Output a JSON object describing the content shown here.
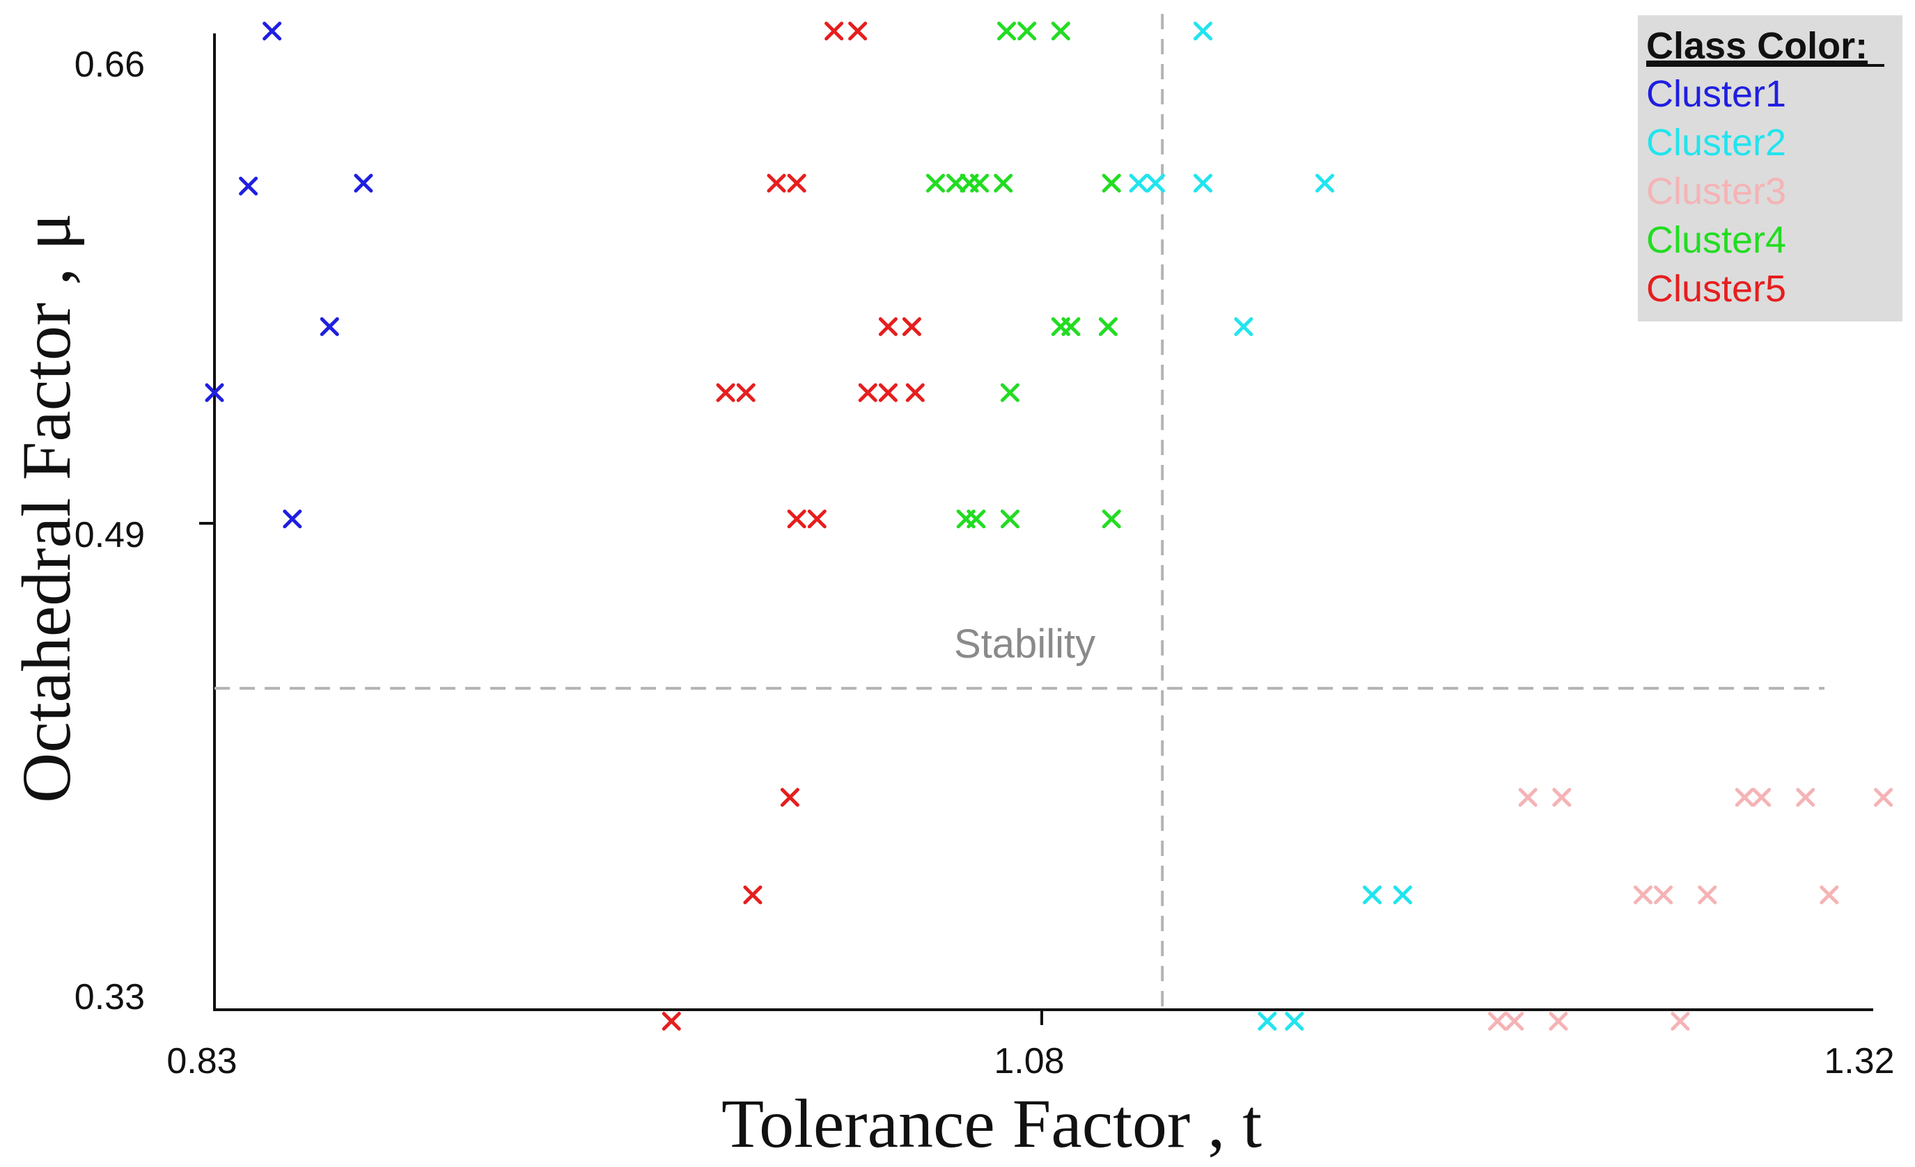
{
  "chart_data": {
    "type": "scatter",
    "title": "",
    "xlabel": "Tolerance Factor , t",
    "ylabel": "Octahedral Factor , μ",
    "xlim": [
      0.83,
      1.33
    ],
    "ylim": [
      0.33,
      0.67
    ],
    "xticks": [
      {
        "value": 0.83,
        "label": "0.83"
      },
      {
        "value": 1.08,
        "label": "1.08"
      },
      {
        "value": 1.32,
        "label": "1.32"
      }
    ],
    "yticks": [
      {
        "value": 0.33,
        "label": "0.33"
      },
      {
        "value": 0.49,
        "label": "0.49"
      },
      {
        "value": 0.66,
        "label": "0.66"
      }
    ],
    "reference_lines": {
      "vertical_x": 1.11,
      "horizontal_y": 0.442
    },
    "annotation": "Stability",
    "legend": {
      "title": "Class Color:",
      "position": "top-right"
    },
    "series": [
      {
        "name": "Cluster1",
        "color": "#1f1fe0",
        "points": [
          [
            0.847,
            0.671
          ],
          [
            0.84,
            0.617
          ],
          [
            0.874,
            0.618
          ],
          [
            0.864,
            0.568
          ],
          [
            0.83,
            0.545
          ],
          [
            0.853,
            0.501
          ]
        ]
      },
      {
        "name": "Cluster2",
        "color": "#22e4ee",
        "points": [
          [
            1.122,
            0.671
          ],
          [
            1.103,
            0.618
          ],
          [
            1.108,
            0.618
          ],
          [
            1.122,
            0.618
          ],
          [
            1.158,
            0.618
          ],
          [
            1.134,
            0.568
          ],
          [
            1.141,
            0.326
          ],
          [
            1.149,
            0.326
          ],
          [
            1.172,
            0.37
          ],
          [
            1.181,
            0.37
          ]
        ]
      },
      {
        "name": "Cluster3",
        "color": "#f5b3b5",
        "points": [
          [
            1.209,
            0.326
          ],
          [
            1.214,
            0.326
          ],
          [
            1.227,
            0.326
          ],
          [
            1.263,
            0.326
          ],
          [
            1.218,
            0.404
          ],
          [
            1.228,
            0.404
          ],
          [
            1.282,
            0.404
          ],
          [
            1.287,
            0.404
          ],
          [
            1.3,
            0.404
          ],
          [
            1.323,
            0.404
          ],
          [
            1.252,
            0.37
          ],
          [
            1.258,
            0.37
          ],
          [
            1.271,
            0.37
          ],
          [
            1.307,
            0.37
          ]
        ]
      },
      {
        "name": "Cluster4",
        "color": "#22dc22",
        "points": [
          [
            1.064,
            0.671
          ],
          [
            1.07,
            0.671
          ],
          [
            1.08,
            0.671
          ],
          [
            1.043,
            0.618
          ],
          [
            1.049,
            0.618
          ],
          [
            1.053,
            0.618
          ],
          [
            1.056,
            0.618
          ],
          [
            1.063,
            0.618
          ],
          [
            1.095,
            0.618
          ],
          [
            1.08,
            0.568
          ],
          [
            1.083,
            0.568
          ],
          [
            1.094,
            0.568
          ],
          [
            1.065,
            0.545
          ],
          [
            1.052,
            0.501
          ],
          [
            1.055,
            0.501
          ],
          [
            1.065,
            0.501
          ],
          [
            1.095,
            0.501
          ]
        ]
      },
      {
        "name": "Cluster5",
        "color": "#e61e1e",
        "points": [
          [
            1.013,
            0.671
          ],
          [
            1.02,
            0.671
          ],
          [
            0.996,
            0.618
          ],
          [
            1.002,
            0.618
          ],
          [
            1.029,
            0.568
          ],
          [
            1.036,
            0.568
          ],
          [
            0.981,
            0.545
          ],
          [
            0.987,
            0.545
          ],
          [
            1.023,
            0.545
          ],
          [
            1.029,
            0.545
          ],
          [
            1.037,
            0.545
          ],
          [
            1.002,
            0.501
          ],
          [
            1.008,
            0.501
          ],
          [
            1.0,
            0.404
          ],
          [
            0.989,
            0.37
          ],
          [
            0.965,
            0.326
          ]
        ]
      }
    ]
  }
}
